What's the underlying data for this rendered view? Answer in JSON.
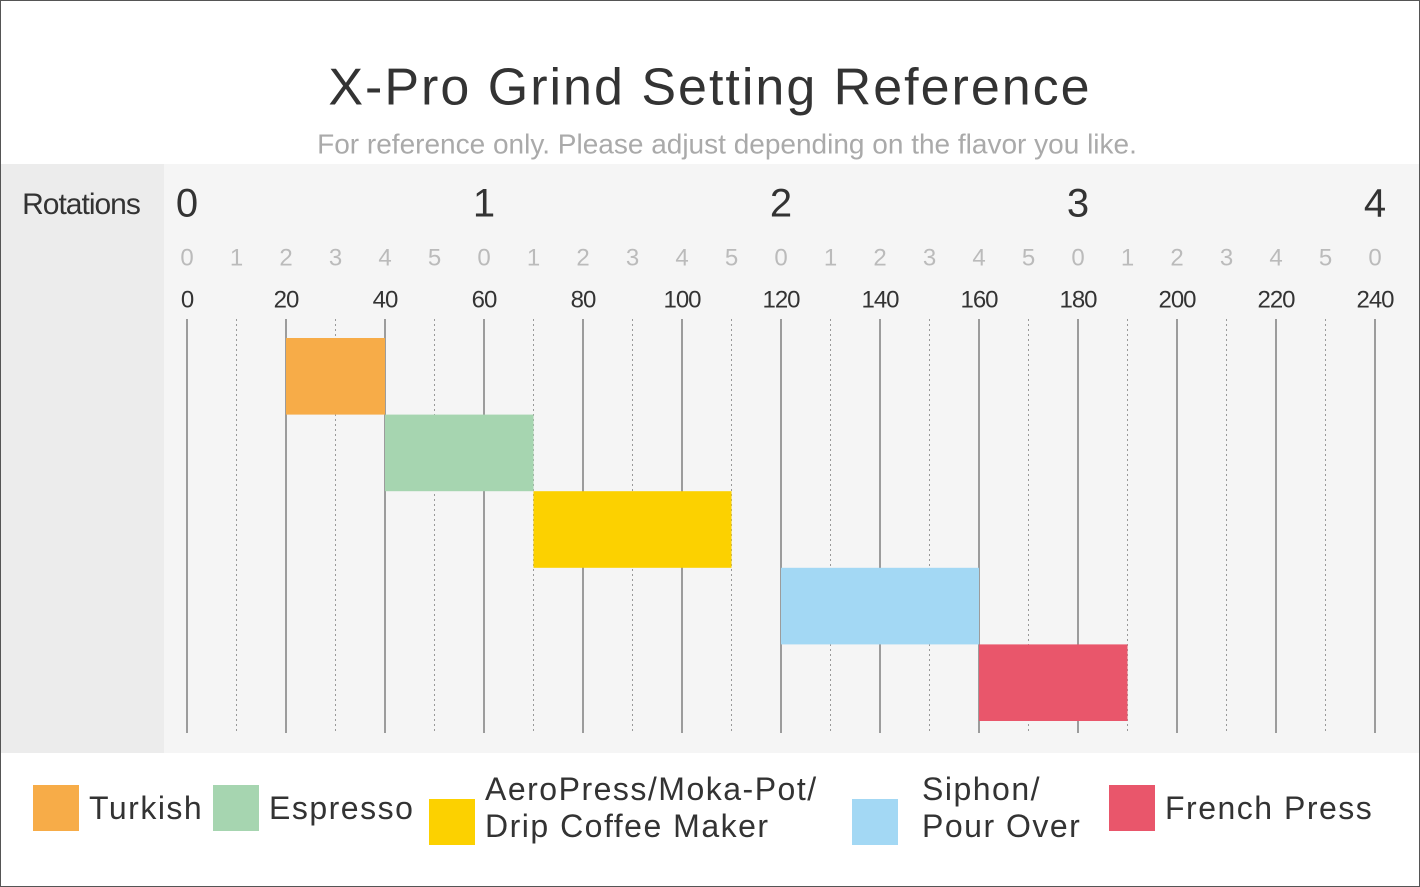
{
  "chart_data": {
    "type": "range",
    "title": "X-Pro Grind Setting Reference",
    "subtitle": "For reference only. Please adjust depending on the flavor you like.",
    "axis_label": "Rotations",
    "xlim": [
      0,
      240
    ],
    "rotation_ticks": [
      {
        "value": 0,
        "label": "0"
      },
      {
        "value": 60,
        "label": "1"
      },
      {
        "value": 120,
        "label": "2"
      },
      {
        "value": 180,
        "label": "3"
      },
      {
        "value": 240,
        "label": "4"
      }
    ],
    "step_ticks": [
      {
        "value": 0,
        "label": "0"
      },
      {
        "value": 10,
        "label": "1"
      },
      {
        "value": 20,
        "label": "2"
      },
      {
        "value": 30,
        "label": "3"
      },
      {
        "value": 40,
        "label": "4"
      },
      {
        "value": 50,
        "label": "5"
      },
      {
        "value": 60,
        "label": "0"
      },
      {
        "value": 70,
        "label": "1"
      },
      {
        "value": 80,
        "label": "2"
      },
      {
        "value": 90,
        "label": "3"
      },
      {
        "value": 100,
        "label": "4"
      },
      {
        "value": 110,
        "label": "5"
      },
      {
        "value": 120,
        "label": "0"
      },
      {
        "value": 130,
        "label": "1"
      },
      {
        "value": 140,
        "label": "2"
      },
      {
        "value": 150,
        "label": "3"
      },
      {
        "value": 160,
        "label": "4"
      },
      {
        "value": 170,
        "label": "5"
      },
      {
        "value": 180,
        "label": "0"
      },
      {
        "value": 190,
        "label": "1"
      },
      {
        "value": 200,
        "label": "2"
      },
      {
        "value": 210,
        "label": "3"
      },
      {
        "value": 220,
        "label": "4"
      },
      {
        "value": 230,
        "label": "5"
      },
      {
        "value": 240,
        "label": "0"
      }
    ],
    "xticks": [
      0,
      20,
      40,
      60,
      80,
      100,
      120,
      140,
      160,
      180,
      200,
      220,
      240
    ],
    "grid": true,
    "series": [
      {
        "name": "Turkish",
        "color": "#f7ac48",
        "values": [
          20,
          40
        ]
      },
      {
        "name": "Espresso",
        "color": "#a6d5b0",
        "values": [
          40,
          70
        ]
      },
      {
        "name": "AeroPress/Moka-Pot/\nDrip Coffee Maker",
        "color": "#fcd100",
        "values": [
          70,
          110
        ]
      },
      {
        "name": "Siphon/\nPour Over",
        "color": "#a3d8f4",
        "values": [
          120,
          160
        ]
      },
      {
        "name": "French Press",
        "color": "#e9566b",
        "values": [
          160,
          190
        ]
      }
    ]
  }
}
